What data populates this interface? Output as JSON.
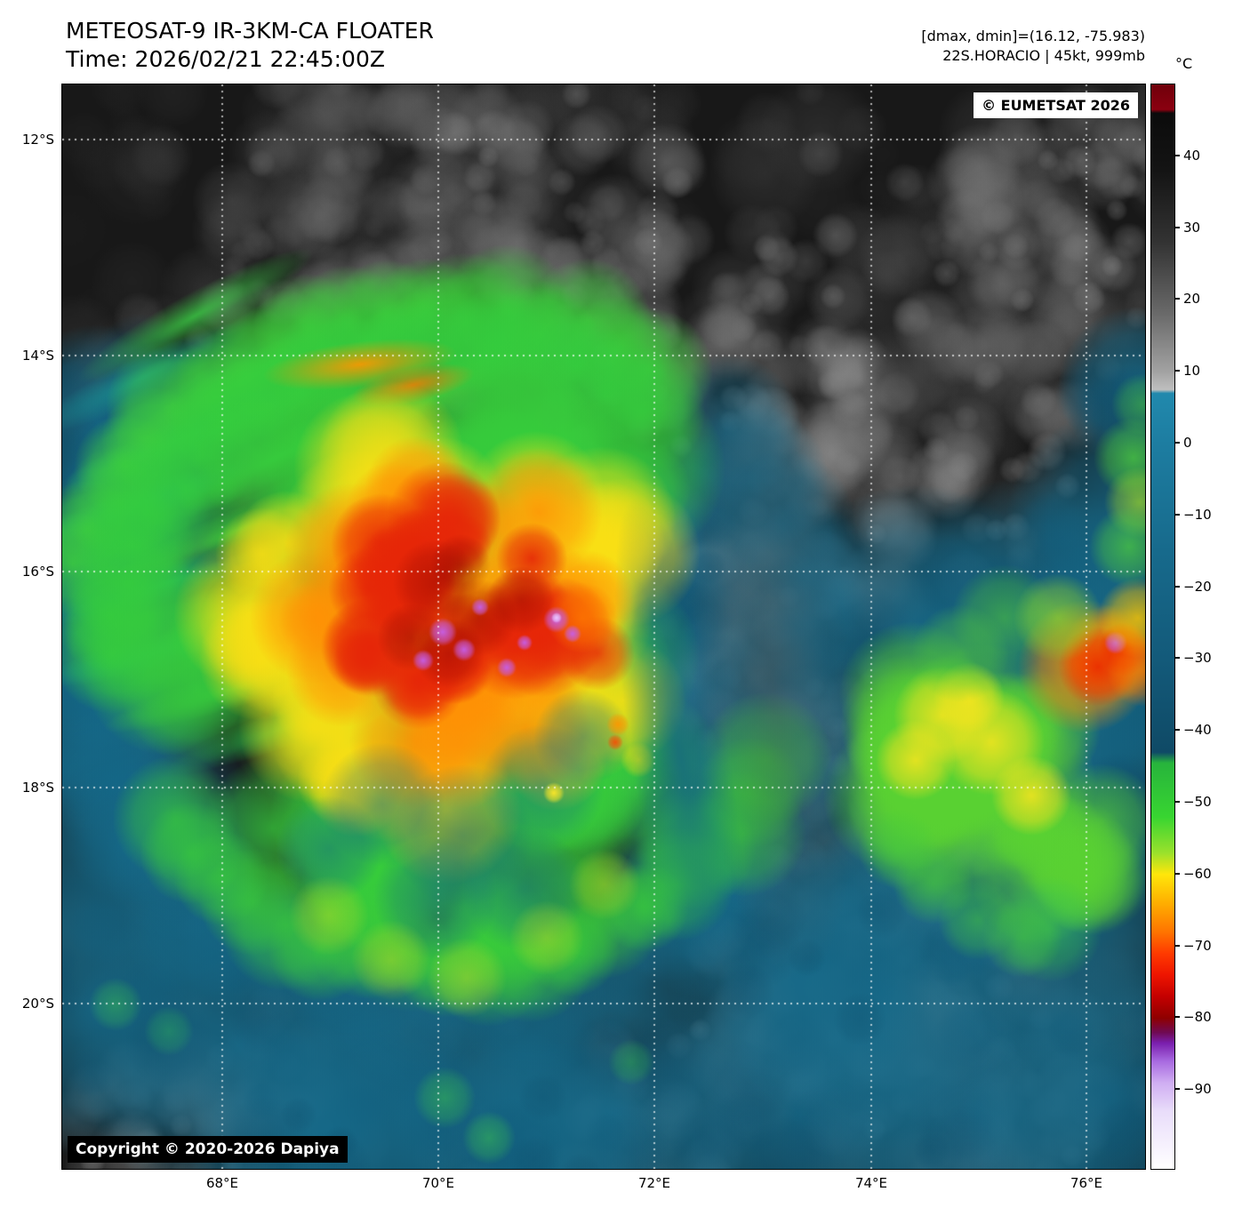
{
  "header": {
    "title": "METEOSAT-9 IR-3KM-CA FLOATER",
    "time": "Time: 2026/02/21 22:45:00Z",
    "range_info": "[dmax, dmin]=(16.12, -75.983)",
    "storm_info": "22S.HORACIO | 45kt, 999mb"
  },
  "badges": {
    "provider": "© EUMETSAT 2026",
    "copyright": "Copyright © 2020-2026 Dapiya"
  },
  "axes": {
    "lat_labels": [
      "12°S",
      "14°S",
      "16°S",
      "18°S",
      "20°S"
    ],
    "lon_labels": [
      "68°E",
      "70°E",
      "72°E",
      "74°E",
      "76°E"
    ]
  },
  "colorbar": {
    "unit": "°C",
    "t_max": 50,
    "t_min": -101,
    "ticks": [
      {
        "t": 40,
        "label": "40"
      },
      {
        "t": 30,
        "label": "30"
      },
      {
        "t": 20,
        "label": "20"
      },
      {
        "t": 10,
        "label": "10"
      },
      {
        "t": 0,
        "label": "0"
      },
      {
        "t": -10,
        "label": "−10"
      },
      {
        "t": -20,
        "label": "−20"
      },
      {
        "t": -30,
        "label": "−30"
      },
      {
        "t": -40,
        "label": "−40"
      },
      {
        "t": -50,
        "label": "−50"
      },
      {
        "t": -60,
        "label": "−60"
      },
      {
        "t": -70,
        "label": "−70"
      },
      {
        "t": -80,
        "label": "−80"
      },
      {
        "t": -90,
        "label": "−90"
      }
    ],
    "stops": [
      {
        "t": 50,
        "c": "#6f000a"
      },
      {
        "t": 46.5,
        "c": "#8b0010"
      },
      {
        "t": 46,
        "c": "#0b0b0b"
      },
      {
        "t": 38,
        "c": "#141414"
      },
      {
        "t": 28,
        "c": "#333333"
      },
      {
        "t": 18,
        "c": "#6a6a6a"
      },
      {
        "t": 10,
        "c": "#a2a2a2"
      },
      {
        "t": 7.5,
        "c": "#bfbfbf"
      },
      {
        "t": 7,
        "c": "#2189ad"
      },
      {
        "t": 0,
        "c": "#1d7da1"
      },
      {
        "t": -15,
        "c": "#176a8c"
      },
      {
        "t": -30,
        "c": "#135a7a"
      },
      {
        "t": -43,
        "c": "#0f4a66"
      },
      {
        "t": -44.5,
        "c": "#27b43c"
      },
      {
        "t": -52,
        "c": "#38d531"
      },
      {
        "t": -57,
        "c": "#9ae12c"
      },
      {
        "t": -60,
        "c": "#ffe60a"
      },
      {
        "t": -64,
        "c": "#ffae00"
      },
      {
        "t": -68,
        "c": "#ff7400"
      },
      {
        "t": -71,
        "c": "#ff3a00"
      },
      {
        "t": -74,
        "c": "#ee1500"
      },
      {
        "t": -77,
        "c": "#c40000"
      },
      {
        "t": -80,
        "c": "#8f0000"
      },
      {
        "t": -82,
        "c": "#6f0a53"
      },
      {
        "t": -83.5,
        "c": "#7a1fae"
      },
      {
        "t": -86,
        "c": "#a86ae0"
      },
      {
        "t": -89,
        "c": "#cfadf2"
      },
      {
        "t": -93,
        "c": "#e9ddfa"
      },
      {
        "t": -101,
        "c": "#ffffff"
      }
    ]
  }
}
